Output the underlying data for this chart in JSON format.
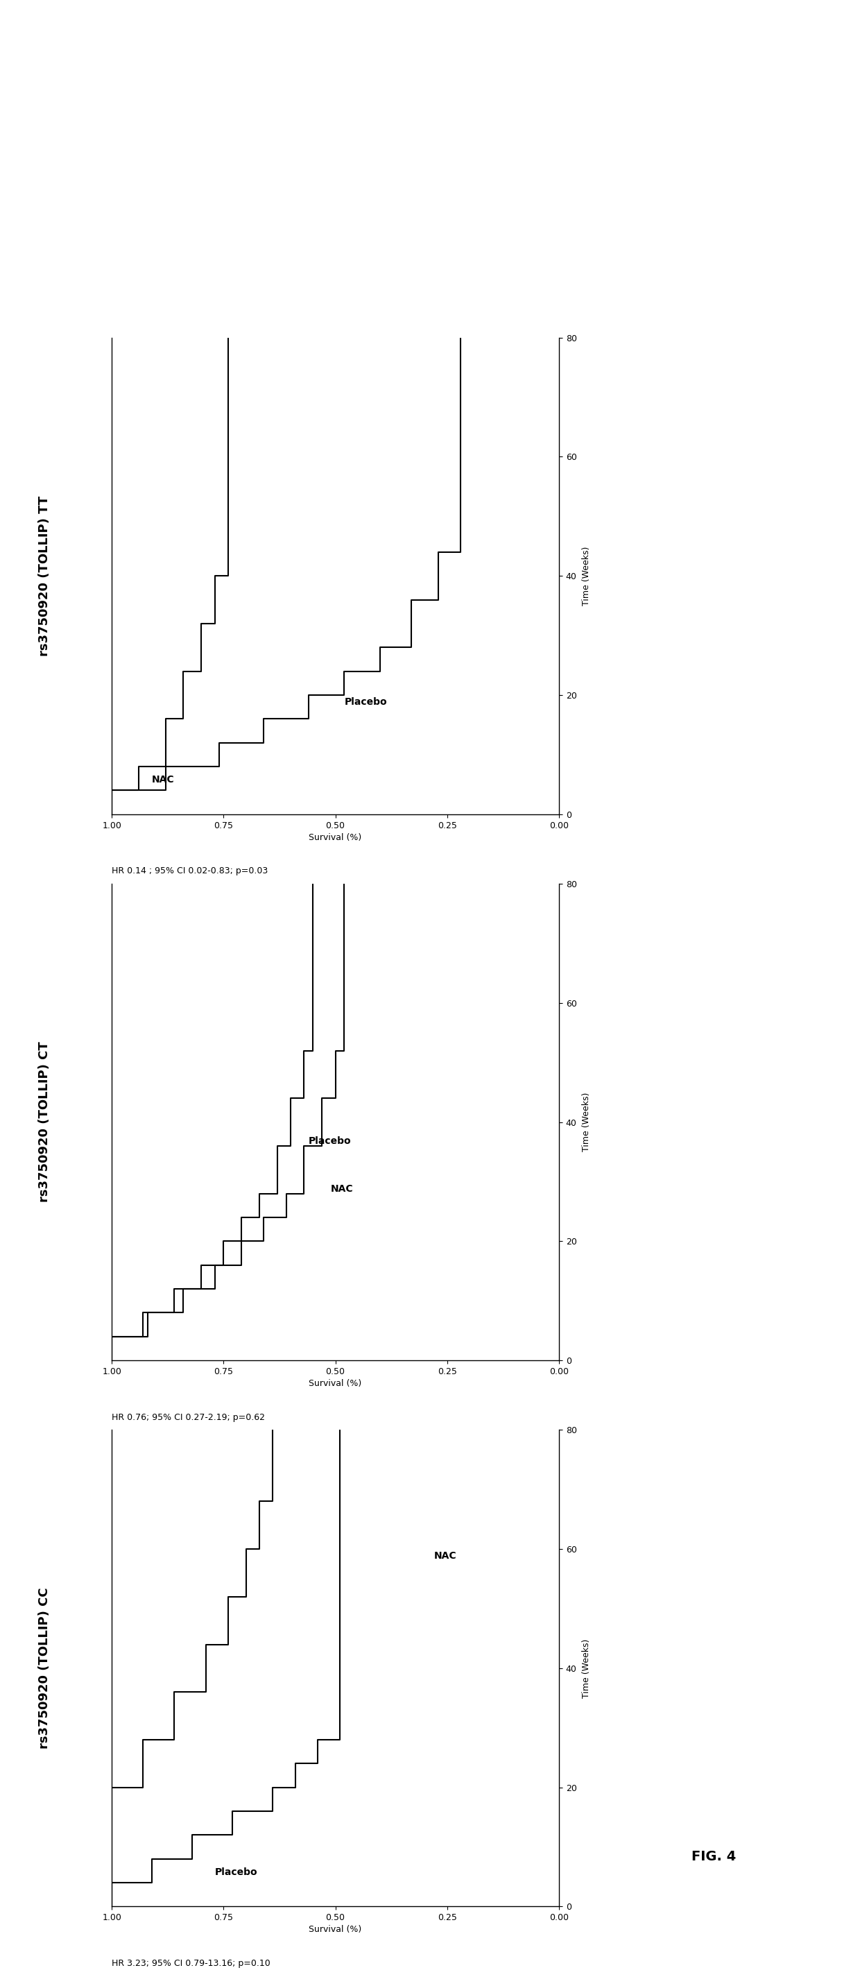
{
  "panels": [
    {
      "title": "rs3750920 (TOLLIP) CC",
      "hr_text": "HR 3.23; 95% CI 0.79-13.16; p=0.10",
      "placebo_surv": [
        1.0,
        1.0,
        0.91,
        0.82,
        0.73,
        0.64,
        0.59,
        0.54,
        0.49,
        0.49
      ],
      "placebo_time": [
        0,
        4,
        4,
        8,
        12,
        16,
        20,
        24,
        28,
        80
      ],
      "nac_surv": [
        1.0,
        1.0,
        0.93,
        0.86,
        0.79,
        0.74,
        0.7,
        0.67,
        0.64,
        0.64
      ],
      "nac_time": [
        0,
        20,
        20,
        28,
        36,
        44,
        52,
        60,
        68,
        80
      ],
      "placebo_ann_s": 0.77,
      "placebo_ann_t": 5,
      "nac_ann_s": 0.28,
      "nac_ann_t": 58
    },
    {
      "title": "rs3750920 (TOLLIP) CT",
      "hr_text": "HR 0.76; 95% CI 0.27-2.19; p=0.62",
      "placebo_surv": [
        1.0,
        1.0,
        0.93,
        0.86,
        0.8,
        0.75,
        0.71,
        0.67,
        0.63,
        0.6,
        0.57,
        0.55,
        0.55
      ],
      "placebo_time": [
        0,
        4,
        4,
        8,
        12,
        16,
        20,
        24,
        28,
        36,
        44,
        52,
        80
      ],
      "nac_surv": [
        1.0,
        1.0,
        0.92,
        0.84,
        0.77,
        0.71,
        0.66,
        0.61,
        0.57,
        0.53,
        0.5,
        0.48,
        0.48
      ],
      "nac_time": [
        0,
        4,
        4,
        8,
        12,
        16,
        20,
        24,
        28,
        36,
        44,
        52,
        80
      ],
      "placebo_ann_s": 0.56,
      "placebo_ann_t": 36,
      "nac_ann_s": 0.51,
      "nac_ann_t": 28
    },
    {
      "title": "rs3750920 (TOLLIP) TT",
      "hr_text": "HR 0.14 ; 95% CI 0.02-0.83; p=0.03",
      "placebo_surv": [
        1.0,
        1.0,
        0.88,
        0.76,
        0.66,
        0.56,
        0.48,
        0.4,
        0.33,
        0.27,
        0.22,
        0.22
      ],
      "placebo_time": [
        0,
        4,
        4,
        8,
        12,
        16,
        20,
        24,
        28,
        36,
        44,
        80
      ],
      "nac_surv": [
        1.0,
        1.0,
        0.94,
        0.88,
        0.84,
        0.8,
        0.77,
        0.74,
        0.74
      ],
      "nac_time": [
        0,
        4,
        4,
        8,
        16,
        24,
        32,
        40,
        80
      ],
      "placebo_ann_s": 0.48,
      "placebo_ann_t": 18,
      "nac_ann_s": 0.91,
      "nac_ann_t": 5
    }
  ],
  "surv_ticks": [
    1.0,
    0.75,
    0.5,
    0.25,
    0.0
  ],
  "time_ticks": [
    0,
    20,
    40,
    60,
    80
  ],
  "ylabel_surv": "Survival (%)",
  "ylabel_time": "Time (Weeks)",
  "fig_label": "FIG. 4",
  "bg": "#ffffff",
  "lc": "#000000",
  "fs_title": 13,
  "fs_label": 9,
  "fs_tick": 9,
  "fs_hr": 9,
  "fs_ann": 10,
  "fs_figlabel": 14
}
